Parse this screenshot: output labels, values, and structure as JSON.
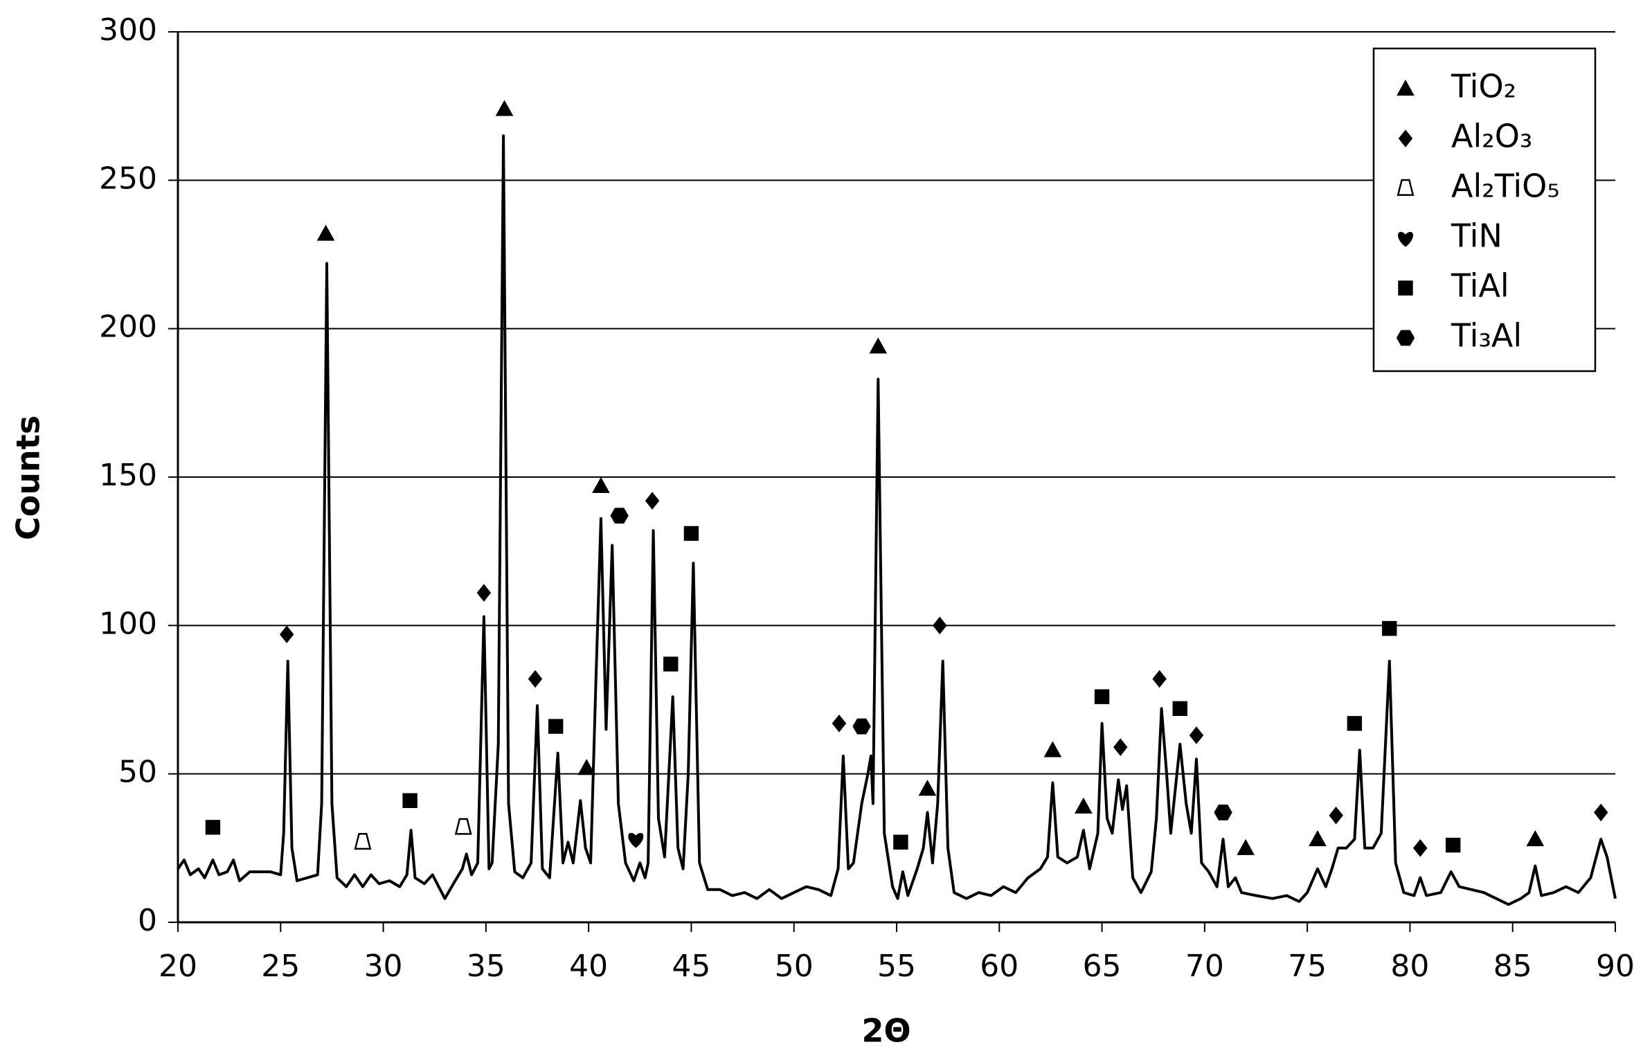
{
  "chart_data": {
    "type": "line",
    "xlabel": "2Θ",
    "ylabel": "Counts",
    "xlim": [
      20,
      90
    ],
    "xticks": [
      20,
      25,
      30,
      35,
      40,
      45,
      50,
      55,
      60,
      65,
      70,
      75,
      80,
      85,
      90
    ],
    "ylim": [
      0,
      300
    ],
    "yticks": [
      0,
      50,
      100,
      150,
      200,
      250,
      300
    ],
    "grid": true,
    "legend": "upper right",
    "series": [
      {
        "type": "line",
        "color": "#000000",
        "x": [
          20.0,
          20.3,
          20.6,
          21.0,
          21.3,
          21.7,
          22.0,
          22.4,
          22.7,
          23.0,
          23.5,
          24.0,
          24.5,
          25.0,
          25.15,
          25.35,
          25.55,
          25.8,
          26.3,
          26.8,
          27.0,
          27.25,
          27.5,
          27.75,
          28.2,
          28.6,
          29.0,
          29.4,
          29.8,
          30.3,
          30.8,
          31.15,
          31.35,
          31.55,
          32.0,
          32.4,
          33.0,
          33.5,
          33.85,
          34.05,
          34.3,
          34.6,
          34.9,
          35.15,
          35.3,
          35.6,
          35.85,
          36.1,
          36.4,
          36.8,
          37.2,
          37.5,
          37.75,
          38.1,
          38.5,
          38.75,
          39.0,
          39.25,
          39.6,
          39.85,
          40.1,
          40.35,
          40.6,
          40.85,
          41.15,
          41.45,
          41.8,
          42.2,
          42.5,
          42.75,
          42.9,
          43.15,
          43.4,
          43.7,
          44.1,
          44.35,
          44.6,
          44.85,
          45.1,
          45.4,
          45.8,
          46.4,
          47.0,
          47.6,
          48.2,
          48.8,
          49.4,
          50.0,
          50.6,
          51.2,
          51.8,
          52.15,
          52.4,
          52.65,
          52.9,
          53.3,
          53.6,
          53.75,
          53.85,
          54.1,
          54.4,
          54.8,
          55.05,
          55.3,
          55.55,
          56.0,
          56.3,
          56.5,
          56.75,
          57.0,
          57.25,
          57.5,
          57.8,
          58.4,
          59.0,
          59.6,
          60.2,
          60.8,
          61.4,
          62.0,
          62.35,
          62.6,
          62.85,
          63.3,
          63.8,
          64.1,
          64.4,
          64.8,
          65.0,
          65.25,
          65.5,
          65.8,
          66.0,
          66.2,
          66.5,
          66.9,
          67.4,
          67.65,
          67.9,
          68.15,
          68.35,
          68.8,
          69.1,
          69.35,
          69.6,
          69.85,
          70.2,
          70.6,
          70.9,
          71.15,
          71.5,
          71.8,
          72.5,
          73.3,
          74.0,
          74.6,
          75.0,
          75.5,
          75.9,
          76.2,
          76.5,
          76.9,
          77.3,
          77.55,
          77.8,
          78.2,
          78.6,
          79.0,
          79.3,
          79.7,
          80.2,
          80.5,
          80.8,
          81.5,
          82.0,
          82.4,
          83.0,
          83.6,
          84.2,
          84.8,
          85.4,
          85.8,
          86.1,
          86.4,
          87.0,
          87.6,
          88.2,
          88.8,
          89.3,
          89.6,
          90.0
        ],
        "values": [
          18,
          21,
          16,
          18,
          15,
          21,
          16,
          17,
          21,
          14,
          17,
          17,
          17,
          16,
          30,
          88,
          25,
          14,
          15,
          16,
          40,
          222,
          40,
          15,
          12,
          16,
          12,
          16,
          13,
          14,
          12,
          16,
          31,
          15,
          13,
          16,
          8,
          14,
          18,
          23,
          16,
          20,
          103,
          18,
          20,
          60,
          265,
          40,
          17,
          15,
          20,
          73,
          18,
          15,
          57,
          20,
          27,
          20,
          41,
          25,
          20,
          80,
          136,
          65,
          127,
          40,
          20,
          14,
          20,
          15,
          20,
          132,
          35,
          22,
          76,
          25,
          18,
          50,
          121,
          20,
          11,
          11,
          9,
          10,
          8,
          11,
          8,
          10,
          12,
          11,
          9,
          18,
          56,
          18,
          20,
          40,
          50,
          56,
          40,
          183,
          30,
          12,
          8,
          17,
          9,
          18,
          25,
          37,
          20,
          40,
          88,
          25,
          10,
          8,
          10,
          9,
          12,
          10,
          15,
          18,
          22,
          47,
          22,
          20,
          22,
          31,
          18,
          30,
          67,
          35,
          30,
          48,
          38,
          46,
          15,
          10,
          17,
          35,
          72,
          50,
          30,
          60,
          40,
          30,
          55,
          20,
          17,
          12,
          28,
          12,
          15,
          10,
          9,
          8,
          9,
          7,
          10,
          18,
          12,
          18,
          25,
          25,
          28,
          58,
          25,
          25,
          30,
          88,
          20,
          10,
          9,
          15,
          9,
          10,
          17,
          12,
          11,
          10,
          8,
          6,
          8,
          10,
          19,
          9,
          10,
          12,
          10,
          15,
          28,
          22,
          8
        ]
      },
      {
        "type": "scatter",
        "name": "TiO₂",
        "marker": "triangle",
        "color": "#000000",
        "x": [
          27.2,
          35.9,
          39.9,
          40.6,
          54.1,
          56.5,
          62.6,
          64.1,
          72.0,
          75.5,
          86.1
        ],
        "values": [
          232,
          274,
          52,
          147,
          194,
          45,
          58,
          39,
          25,
          28,
          28
        ]
      },
      {
        "type": "scatter",
        "name": "Al₂O₃",
        "marker": "diamond",
        "color": "#000000",
        "x": [
          25.3,
          34.9,
          37.4,
          43.1,
          52.2,
          57.1,
          65.9,
          67.8,
          69.6,
          76.4,
          80.5,
          89.3
        ],
        "values": [
          97,
          111,
          82,
          142,
          67,
          100,
          59,
          82,
          63,
          36,
          25,
          37
        ]
      },
      {
        "type": "scatter",
        "name": "Al₂TiO₅",
        "marker": "open-trapezoid",
        "color": "#000000",
        "x": [
          29.0,
          33.9
        ],
        "values": [
          27,
          32
        ]
      },
      {
        "type": "scatter",
        "name": "TiN",
        "marker": "heart",
        "color": "#000000",
        "x": [
          42.3
        ],
        "values": [
          28
        ]
      },
      {
        "type": "scatter",
        "name": "TiAl",
        "marker": "square",
        "color": "#000000",
        "x": [
          21.7,
          31.3,
          38.4,
          44.0,
          45.0,
          55.2,
          65.0,
          68.8,
          77.3,
          79.0,
          82.1
        ],
        "values": [
          32,
          41,
          66,
          87,
          131,
          27,
          76,
          72,
          67,
          99,
          26
        ]
      },
      {
        "type": "scatter",
        "name": "Ti₃Al",
        "marker": "hexagon",
        "color": "#000000",
        "x": [
          41.5,
          53.3,
          70.9
        ],
        "values": [
          137,
          66,
          37
        ]
      }
    ]
  }
}
